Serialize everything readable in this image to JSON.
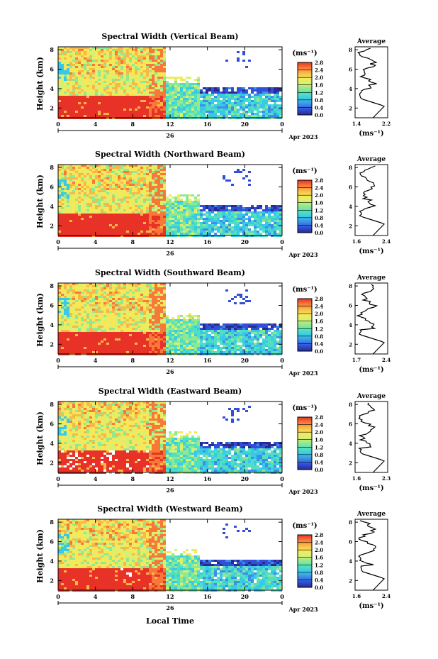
{
  "figure": {
    "xlabel_bottom": "Local Time",
    "panel_suffix": "(ms⁻¹)",
    "avg_title": "Average",
    "date_label": "Apr 2023",
    "day_label": "26",
    "height_label": "Height (km)",
    "colors": {
      "background": "#ffffff",
      "scale": [
        "#2a2a8e",
        "#3050d8",
        "#3a8fe8",
        "#38c8e8",
        "#50e0c0",
        "#90e890",
        "#d8f070",
        "#f8e858",
        "#f8b848",
        "#f87838",
        "#e83228"
      ]
    }
  },
  "chart_data": [
    {
      "type": "heatmap",
      "title": "Spectral Width (Vertical Beam)",
      "ylabel": "Height (km)",
      "yticks": [
        "2",
        "4",
        "6",
        "8"
      ],
      "xticks": [
        "0",
        "4",
        "8",
        "12",
        "16",
        "20",
        "0"
      ],
      "xlim": [
        0,
        24
      ],
      "ylim": [
        1,
        8.3
      ],
      "colorbar": {
        "label": "(ms⁻¹)",
        "ticks": [
          "2.8",
          "2.4",
          "2.0",
          "1.6",
          "1.2",
          "0.8",
          "0.4",
          "0.0"
        ],
        "range": [
          0,
          2.8
        ]
      },
      "average": {
        "xlabel": "(ms⁻¹)",
        "xticks": [
          "1.4",
          "2.2"
        ],
        "xlim": [
          1.4,
          2.2
        ],
        "yticks": [
          "2",
          "4",
          "6",
          "8"
        ]
      }
    },
    {
      "type": "heatmap",
      "title": "Spectral Width (Northward Beam)",
      "ylabel": "Height (km)",
      "yticks": [
        "2",
        "4",
        "6",
        "8"
      ],
      "xticks": [
        "0",
        "4",
        "8",
        "12",
        "16",
        "20",
        "0"
      ],
      "xlim": [
        0,
        24
      ],
      "ylim": [
        1,
        8.3
      ],
      "colorbar": {
        "label": "(ms⁻¹)",
        "ticks": [
          "2.8",
          "2.4",
          "2.0",
          "1.6",
          "1.2",
          "0.8",
          "0.4",
          "0.0"
        ],
        "range": [
          0,
          2.8
        ]
      },
      "average": {
        "xlabel": "(ms⁻¹)",
        "xticks": [
          "1.6",
          "2.4"
        ],
        "xlim": [
          1.6,
          2.4
        ],
        "yticks": [
          "2",
          "4",
          "6",
          "8"
        ]
      }
    },
    {
      "type": "heatmap",
      "title": "Spectral Width (Southward Beam)",
      "ylabel": "Height (km)",
      "yticks": [
        "2",
        "4",
        "6",
        "8"
      ],
      "xticks": [
        "0",
        "4",
        "8",
        "12",
        "16",
        "20",
        "0"
      ],
      "xlim": [
        0,
        24
      ],
      "ylim": [
        1,
        8.3
      ],
      "colorbar": {
        "label": "(ms⁻¹)",
        "ticks": [
          "2.8",
          "2.4",
          "2.0",
          "1.6",
          "1.2",
          "0.8",
          "0.4",
          "0.0"
        ],
        "range": [
          0,
          2.8
        ]
      },
      "average": {
        "xlabel": "(ms⁻¹)",
        "xticks": [
          "1.7",
          "2.4"
        ],
        "xlim": [
          1.7,
          2.4
        ],
        "yticks": [
          "2",
          "4",
          "6",
          "8"
        ]
      }
    },
    {
      "type": "heatmap",
      "title": "Spectral Width (Eastward Beam)",
      "ylabel": "Height (km)",
      "yticks": [
        "2",
        "4",
        "6",
        "8"
      ],
      "xticks": [
        "0",
        "4",
        "8",
        "12",
        "16",
        "20",
        "0"
      ],
      "xlim": [
        0,
        24
      ],
      "ylim": [
        1,
        8.3
      ],
      "colorbar": {
        "label": "(ms⁻¹)",
        "ticks": [
          "2.8",
          "2.4",
          "2.0",
          "1.6",
          "1.2",
          "0.8",
          "0.4",
          "0.0"
        ],
        "range": [
          0,
          2.8
        ]
      },
      "average": {
        "xlabel": "(ms⁻¹)",
        "xticks": [
          "1.6",
          "2.3"
        ],
        "xlim": [
          1.6,
          2.3
        ],
        "yticks": [
          "2",
          "4",
          "6",
          "8"
        ]
      }
    },
    {
      "type": "heatmap",
      "title": "Spectral Width (Westward Beam)",
      "ylabel": "Height (km)",
      "yticks": [
        "2",
        "4",
        "6",
        "8"
      ],
      "xticks": [
        "0",
        "4",
        "8",
        "12",
        "16",
        "20",
        "0"
      ],
      "xlim": [
        0,
        24
      ],
      "ylim": [
        1,
        8.3
      ],
      "colorbar": {
        "label": "(ms⁻¹)",
        "ticks": [
          "2.8",
          "2.4",
          "2.0",
          "1.6",
          "1.2",
          "0.8",
          "0.4",
          "0.0"
        ],
        "range": [
          0,
          2.8
        ]
      },
      "average": {
        "xlabel": "(ms⁻¹)",
        "xticks": [
          "1.6",
          "2.4"
        ],
        "xlim": [
          1.6,
          2.4
        ],
        "yticks": [
          "2",
          "4",
          "6",
          "8"
        ]
      }
    }
  ]
}
